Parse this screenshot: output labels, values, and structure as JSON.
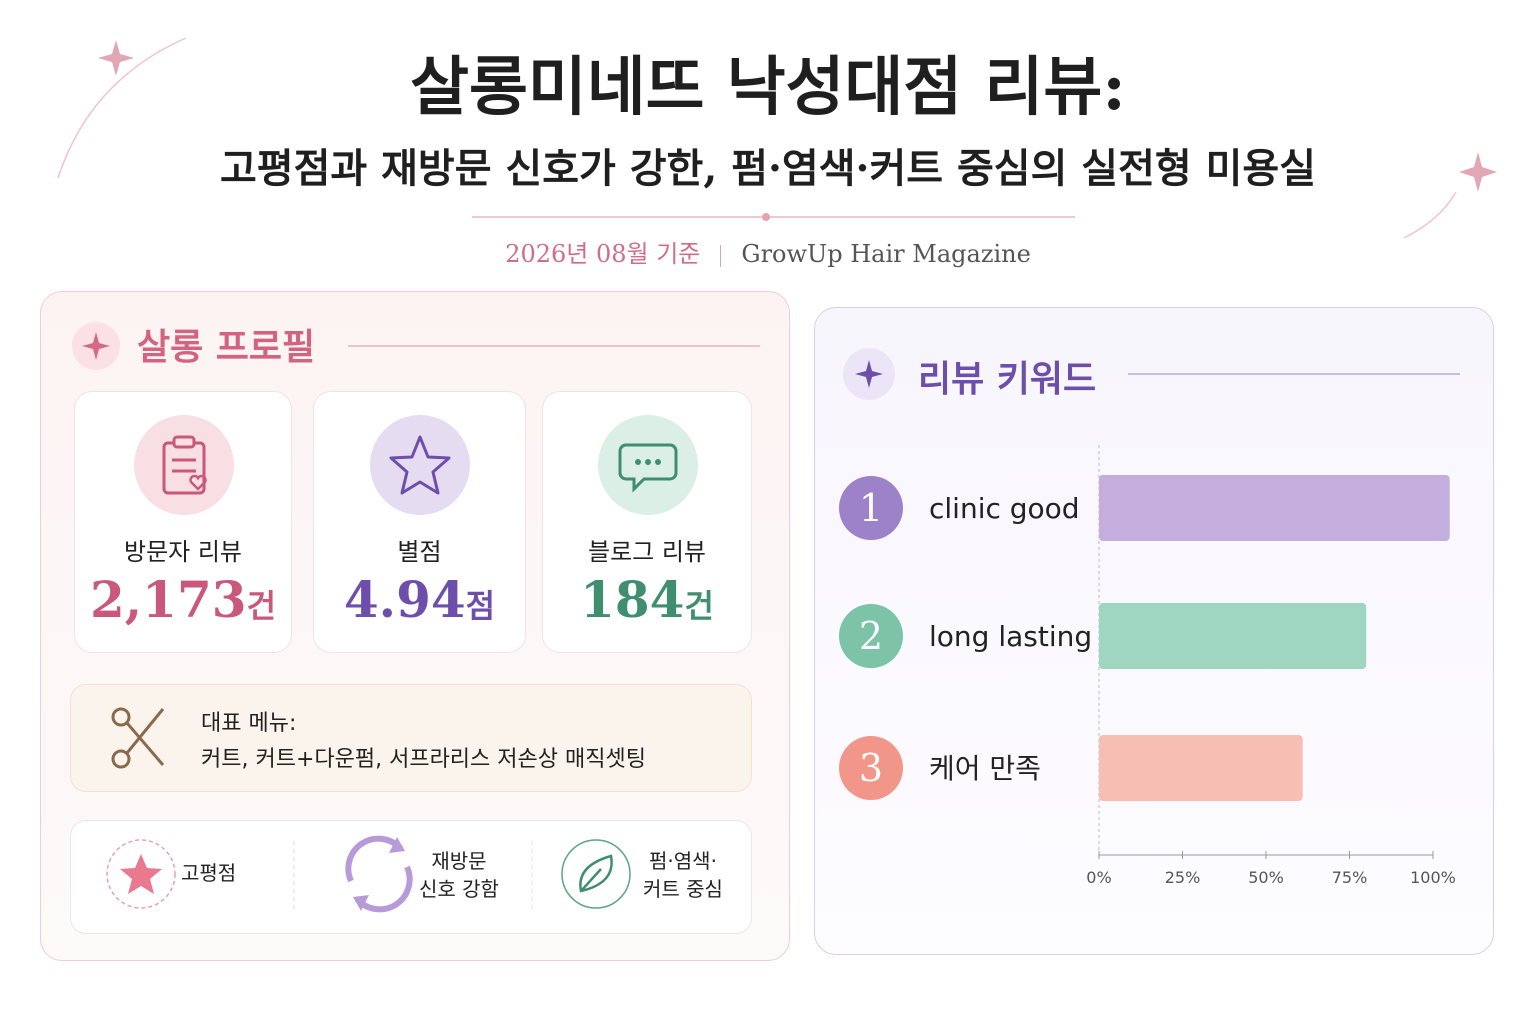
{
  "header": {
    "title": "살롱미네뜨 낙성대점 리뷰:",
    "subtitle": "고평점과 재방문 신호가 강한, 펌·염색·커트 중심의 실전형 미용실",
    "date": "2026년 08월 기준",
    "source": "GrowUp Hair Magazine"
  },
  "profile": {
    "title": "살롱 프로필",
    "stats": [
      {
        "label": "방문자 리뷰",
        "value": "2,173",
        "unit": "건"
      },
      {
        "label": "별점",
        "value": "4.94",
        "unit": "점"
      },
      {
        "label": "블로그 리뷰",
        "value": "184",
        "unit": "건"
      }
    ],
    "menu": {
      "label": "대표 메뉴:",
      "items": "커트, 커트+다운펌, 서프라리스 저손상 매직셋팅"
    },
    "badges": [
      {
        "lines": [
          "고평점"
        ]
      },
      {
        "lines": [
          "재방문",
          "신호 강함"
        ]
      },
      {
        "lines": [
          "펌·염색·",
          "커트 중심"
        ]
      }
    ]
  },
  "chart_data": {
    "type": "bar",
    "orientation": "horizontal",
    "title": "리뷰 키워드",
    "ranks": [
      1,
      2,
      3
    ],
    "categories": [
      "clinic good",
      "long lasting",
      "케어 만족"
    ],
    "values": [
      105,
      80,
      61
    ],
    "colors": [
      "#c3aedd",
      "#9fd6c1",
      "#f7bfb3"
    ],
    "rank_colors": [
      "#9c82c9",
      "#7cc3a8",
      "#f2968a"
    ],
    "xlim": [
      0,
      100
    ],
    "xticks": [
      {
        "value": 0,
        "label": "0%"
      },
      {
        "value": 25,
        "label": "25%"
      },
      {
        "value": 50,
        "label": "50%"
      },
      {
        "value": 75,
        "label": "75%"
      },
      {
        "value": 100,
        "label": "100%"
      }
    ]
  }
}
